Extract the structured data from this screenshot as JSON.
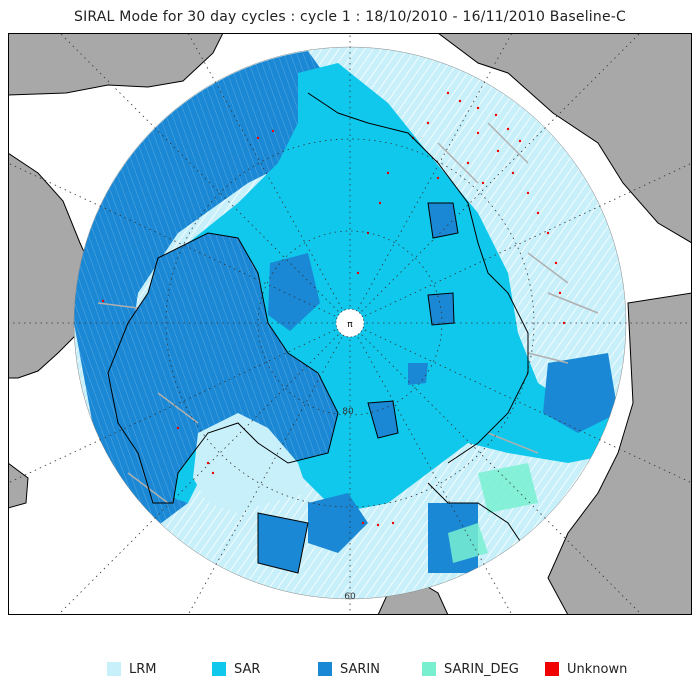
{
  "title": "SIRAL Mode for 30 day cycles : cycle 1 : 18/10/2010 - 16/11/2010 Baseline-C",
  "map": {
    "latitude_labels": [
      "80",
      "60"
    ],
    "pole_marker": "π"
  },
  "legend": [
    {
      "label": "LRM",
      "color": "#c8f0fa"
    },
    {
      "label": "SAR",
      "color": "#10c8ec"
    },
    {
      "label": "SARIN",
      "color": "#1a88d4"
    },
    {
      "label": "SARIN_DEG",
      "color": "#78f0d0"
    },
    {
      "label": "Unknown",
      "color": "#f00000"
    }
  ],
  "colors": {
    "land": "#a8a8a8",
    "background": "#ffffff",
    "grid": "#333333",
    "coast": "#000000"
  }
}
